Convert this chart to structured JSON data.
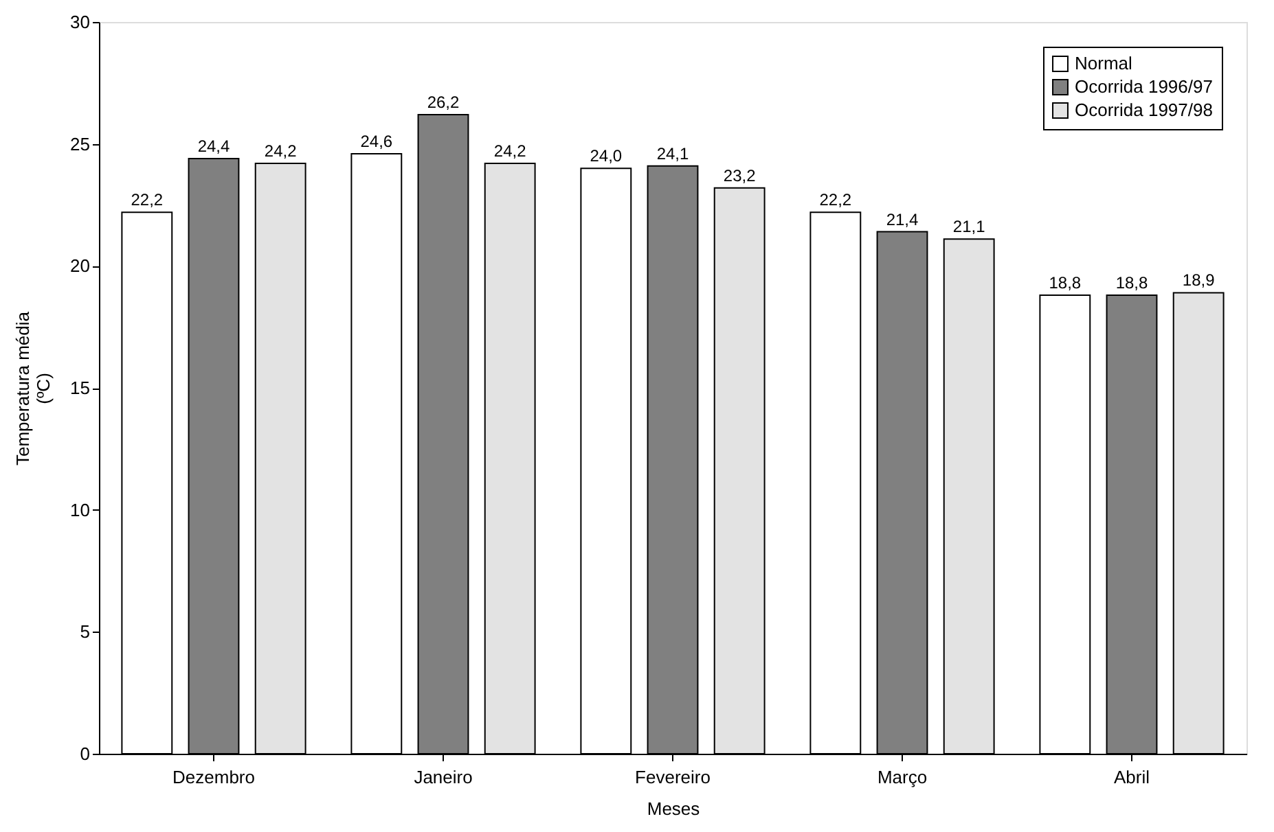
{
  "chart_data": {
    "type": "bar",
    "xlabel": "Meses",
    "ylabel": "Temperatura média\n(ºC)",
    "categories": [
      "Dezembro",
      "Janeiro",
      "Fevereiro",
      "Março",
      "Abril"
    ],
    "series": [
      {
        "name": "Normal",
        "color": "#ffffff",
        "values": [
          22.2,
          24.6,
          24.0,
          22.2,
          18.8
        ],
        "value_labels": [
          "22,2",
          "24,6",
          "24,0",
          "22,2",
          "18,8"
        ]
      },
      {
        "name": "Ocorrida 1996/97",
        "color": "#808080",
        "values": [
          24.4,
          26.2,
          24.1,
          21.4,
          18.8
        ],
        "value_labels": [
          "24,4",
          "26,2",
          "24,1",
          "21,4",
          "18,8"
        ]
      },
      {
        "name": "Ocorrida 1997/98",
        "color": "#e3e3e3",
        "values": [
          24.2,
          24.2,
          23.2,
          21.1,
          18.9
        ],
        "value_labels": [
          "24,2",
          "24,2",
          "23,2",
          "21,1",
          "18,9"
        ]
      }
    ],
    "ylim": [
      0,
      30
    ],
    "yticks": [
      0,
      5,
      10,
      15,
      20,
      25,
      30
    ],
    "grid": false,
    "legend": "top right"
  }
}
